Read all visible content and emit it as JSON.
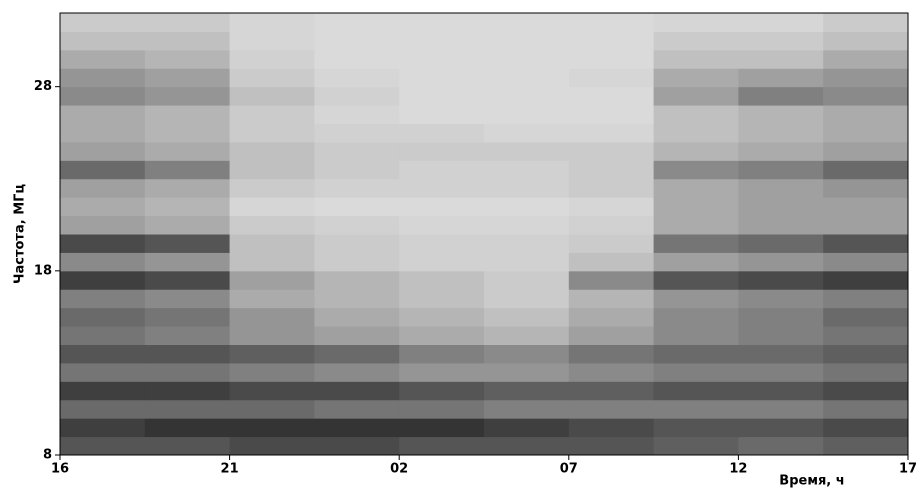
{
  "chart_data": {
    "type": "heatmap",
    "xlabel": "Время, ч",
    "ylabel": "Частота, МГц",
    "xlim": [
      16,
      41
    ],
    "ylim": [
      8,
      32
    ],
    "xticks": [
      16,
      21,
      {
        "value": 26,
        "label": "02"
      },
      {
        "value": 31,
        "label": "07"
      },
      {
        "value": 36,
        "label": "12"
      },
      {
        "value": 41,
        "label": "17"
      }
    ],
    "yticks": [
      8,
      18,
      28
    ],
    "colormap": "gray",
    "x": [
      17.25,
      19.75,
      22.25,
      24.75,
      27.25,
      29.75,
      32.25,
      34.75,
      37.25,
      39.75
    ],
    "y": [
      8.5,
      9.5,
      10.5,
      11.5,
      12.5,
      13.5,
      14.5,
      15.5,
      16.5,
      17.5,
      18.5,
      19.5,
      20.5,
      21.5,
      22.5,
      23.5,
      24.5,
      25.5,
      26.5,
      27.5,
      28.5,
      29.5,
      30.5,
      31.5
    ],
    "z": [
      [
        0.7,
        0.7,
        0.75,
        0.75,
        0.7,
        0.7,
        0.7,
        0.65,
        0.6,
        0.65
      ],
      [
        0.8,
        0.85,
        0.85,
        0.85,
        0.85,
        0.8,
        0.75,
        0.7,
        0.7,
        0.75
      ],
      [
        0.6,
        0.6,
        0.6,
        0.55,
        0.55,
        0.5,
        0.5,
        0.5,
        0.5,
        0.55
      ],
      [
        0.8,
        0.8,
        0.75,
        0.75,
        0.7,
        0.65,
        0.65,
        0.7,
        0.7,
        0.75
      ],
      [
        0.55,
        0.55,
        0.5,
        0.45,
        0.4,
        0.4,
        0.45,
        0.5,
        0.5,
        0.55
      ],
      [
        0.7,
        0.7,
        0.65,
        0.6,
        0.5,
        0.45,
        0.55,
        0.6,
        0.6,
        0.65
      ],
      [
        0.55,
        0.5,
        0.4,
        0.35,
        0.3,
        0.25,
        0.35,
        0.45,
        0.5,
        0.55
      ],
      [
        0.6,
        0.55,
        0.4,
        0.3,
        0.25,
        0.2,
        0.3,
        0.45,
        0.5,
        0.6
      ],
      [
        0.5,
        0.45,
        0.3,
        0.25,
        0.2,
        0.15,
        0.25,
        0.4,
        0.45,
        0.5
      ],
      [
        0.8,
        0.75,
        0.35,
        0.25,
        0.2,
        0.15,
        0.45,
        0.7,
        0.75,
        0.8
      ],
      [
        0.45,
        0.4,
        0.2,
        0.15,
        0.12,
        0.12,
        0.2,
        0.35,
        0.4,
        0.45
      ],
      [
        0.75,
        0.7,
        0.2,
        0.15,
        0.12,
        0.12,
        0.15,
        0.55,
        0.6,
        0.7
      ],
      [
        0.35,
        0.3,
        0.15,
        0.12,
        0.1,
        0.1,
        0.12,
        0.3,
        0.35,
        0.35
      ],
      [
        0.3,
        0.25,
        0.1,
        0.08,
        0.08,
        0.08,
        0.1,
        0.3,
        0.35,
        0.35
      ],
      [
        0.35,
        0.3,
        0.15,
        0.12,
        0.12,
        0.12,
        0.15,
        0.3,
        0.35,
        0.4
      ],
      [
        0.6,
        0.5,
        0.2,
        0.15,
        0.12,
        0.12,
        0.15,
        0.45,
        0.5,
        0.6
      ],
      [
        0.35,
        0.3,
        0.2,
        0.15,
        0.15,
        0.15,
        0.15,
        0.25,
        0.3,
        0.35
      ],
      [
        0.3,
        0.25,
        0.15,
        0.12,
        0.12,
        0.1,
        0.1,
        0.2,
        0.25,
        0.3
      ],
      [
        0.3,
        0.25,
        0.15,
        0.1,
        0.08,
        0.08,
        0.08,
        0.2,
        0.25,
        0.3
      ],
      [
        0.45,
        0.4,
        0.2,
        0.12,
        0.08,
        0.08,
        0.08,
        0.35,
        0.5,
        0.45
      ],
      [
        0.4,
        0.35,
        0.15,
        0.1,
        0.08,
        0.08,
        0.1,
        0.3,
        0.35,
        0.4
      ],
      [
        0.3,
        0.25,
        0.12,
        0.08,
        0.08,
        0.08,
        0.08,
        0.2,
        0.2,
        0.3
      ],
      [
        0.2,
        0.2,
        0.1,
        0.08,
        0.08,
        0.08,
        0.08,
        0.15,
        0.15,
        0.2
      ],
      [
        0.15,
        0.15,
        0.1,
        0.08,
        0.08,
        0.08,
        0.08,
        0.1,
        0.1,
        0.15
      ]
    ]
  }
}
